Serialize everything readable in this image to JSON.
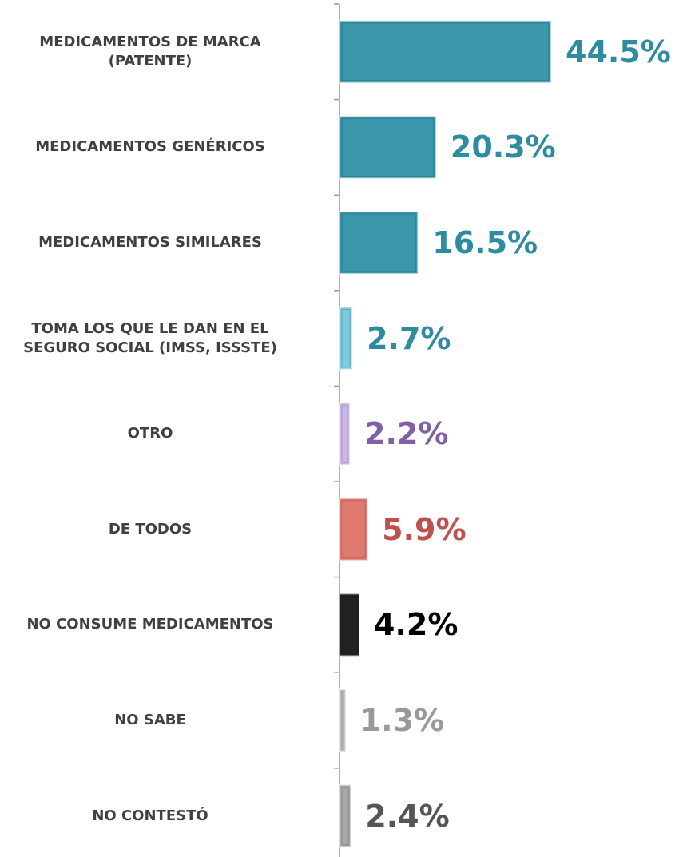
{
  "chart_data": {
    "type": "bar",
    "orientation": "horizontal",
    "categories": [
      "MEDICAMENTOS DE MARCA\n(PATENTE)",
      "MEDICAMENTOS GENÉRICOS",
      "MEDICAMENTOS SIMILARES",
      "TOMA LOS QUE LE DAN EN EL\nSEGURO SOCIAL (IMSS, ISSSTE)",
      "OTRO",
      "DE TODOS",
      "NO CONSUME MEDICAMENTOS",
      "NO SABE",
      "NO CONTESTÓ"
    ],
    "values": [
      44.5,
      20.3,
      16.5,
      2.7,
      2.2,
      5.9,
      4.2,
      1.3,
      2.4
    ],
    "value_labels": [
      "44.5%",
      "20.3%",
      "16.5%",
      "2.7%",
      "2.2%",
      "5.9%",
      "4.2%",
      "1.3%",
      "2.4%"
    ],
    "colors": [
      "#3a97ab",
      "#3a97ab",
      "#3a97ab",
      "#7ecbe0",
      "#cbb8e6",
      "#e07a70",
      "#222222",
      "#bdbdbd",
      "#a9a9a9"
    ],
    "label_colors": [
      "#2e8ca0",
      "#2e8ca0",
      "#2e8ca0",
      "#2e8ca0",
      "#7f62a6",
      "#c0504d",
      "#000000",
      "#999999",
      "#555555"
    ]
  }
}
